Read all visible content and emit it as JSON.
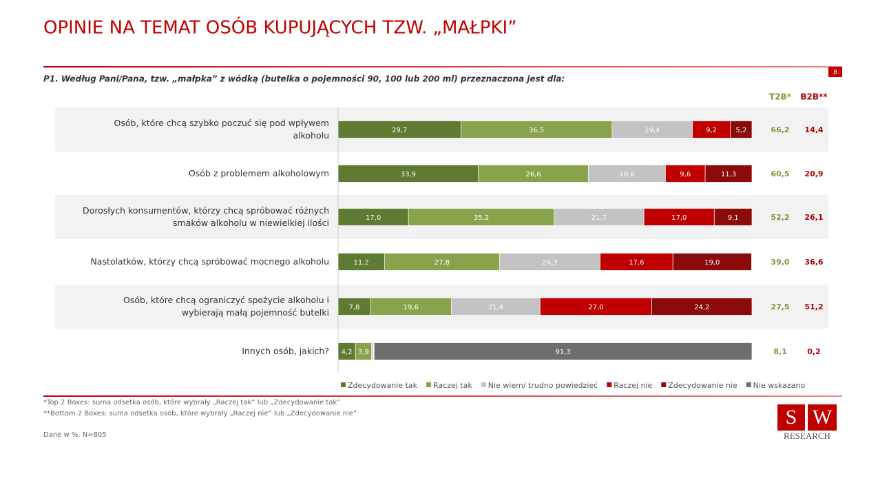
{
  "header": {
    "title": "OPINIE NA TEMAT OSÓB KUPUJĄCYCH TZW. „MAŁPKI”",
    "page_number": "8"
  },
  "chart_data": {
    "type": "bar",
    "orientation": "horizontal",
    "stacked": true,
    "question": "P1. Według Pani/Pana, tzw. „małpka” z wódką (butelka o pojemności 90, 100 lub 200 ml) przeznaczona jest dla:",
    "categories": [
      "Osób, które chcą szybko poczuć się pod wpływem alkoholu",
      "Osób z problemem alkoholowym",
      "Dorosłych konsumentów, którzy chcą spróbować różnych smaków alkoholu w niewielkiej ilości",
      "Nastolatków, którzy chcą spróbować mocnego alkoholu",
      "Osób, które chcą ograniczyć spożycie alkoholu i wybierają małą pojemność butelki",
      "Innych osób, jakich?"
    ],
    "xlim": [
      0,
      100
    ],
    "legend": "bottom",
    "series": [
      {
        "name": "Zdecydowanie tak",
        "color": "#5f7a33",
        "values": [
          29.7,
          33.9,
          17.0,
          11.2,
          7.8,
          4.2
        ],
        "value_labels": [
          "29,7",
          "33,9",
          "17,0",
          "11,2",
          "7,8",
          "4,2"
        ]
      },
      {
        "name": "Raczej tak",
        "color": "#88a34b",
        "values": [
          36.5,
          26.6,
          35.2,
          27.8,
          19.6,
          3.9
        ],
        "value_labels": [
          "36,5",
          "26,6",
          "35,2",
          "27,8",
          "19,6",
          "3,9"
        ]
      },
      {
        "name": "Nie wiem/ trudno powiedzieć",
        "color": "#c3c3c3",
        "values": [
          19.4,
          18.6,
          21.7,
          24.3,
          21.4,
          0.4
        ],
        "value_labels": [
          "19,4",
          "18,6",
          "21,7",
          "24,3",
          "21,4",
          null
        ]
      },
      {
        "name": "Raczej nie",
        "color": "#c00000",
        "values": [
          9.2,
          9.6,
          17.0,
          17.6,
          27.0,
          0.1
        ],
        "value_labels": [
          "9,2",
          "9,6",
          "17,0",
          "17,6",
          "27,0",
          null
        ]
      },
      {
        "name": "Zdecydowanie nie",
        "color": "#8b0a0a",
        "values": [
          5.2,
          11.3,
          9.1,
          19.0,
          24.2,
          0.1
        ],
        "value_labels": [
          "5,2",
          "11,3",
          "9,1",
          "19,0",
          "24,2",
          null
        ]
      },
      {
        "name": "Nie wskazano",
        "color": "#6e6e6e",
        "values": [
          0,
          0,
          0,
          0,
          0,
          91.3
        ],
        "value_labels": [
          null,
          null,
          null,
          null,
          null,
          "91,3"
        ]
      }
    ],
    "summary": [
      {
        "header": "T2B*",
        "color": "#7a9a3a",
        "values": [
          66.2,
          60.5,
          52.2,
          39.0,
          27.5,
          8.1
        ],
        "value_labels": [
          "66,2",
          "60,5",
          "52,2",
          "39,0",
          "27,5",
          "8,1"
        ]
      },
      {
        "header": "B2B**",
        "color": "#b00000",
        "values": [
          14.4,
          20.9,
          26.1,
          36.6,
          51.2,
          0.2
        ],
        "value_labels": [
          "14,4",
          "20,9",
          "26,1",
          "36,6",
          "51,2",
          "0,2"
        ]
      }
    ]
  },
  "footer": {
    "notes": [
      "*Top 2 Boxes: suma odsetka osób, które wybrały „Raczej tak” lub „Zdecydowanie tak”",
      "**Bottom 2 Boxes: suma odsetka osób, które wybrały „Raczej nie” lub „Zdecydowanie nie”"
    ],
    "data_note": "Dane w %, N=805",
    "logo": {
      "letters": [
        "S",
        "W"
      ],
      "text": "RESEARCH"
    }
  }
}
